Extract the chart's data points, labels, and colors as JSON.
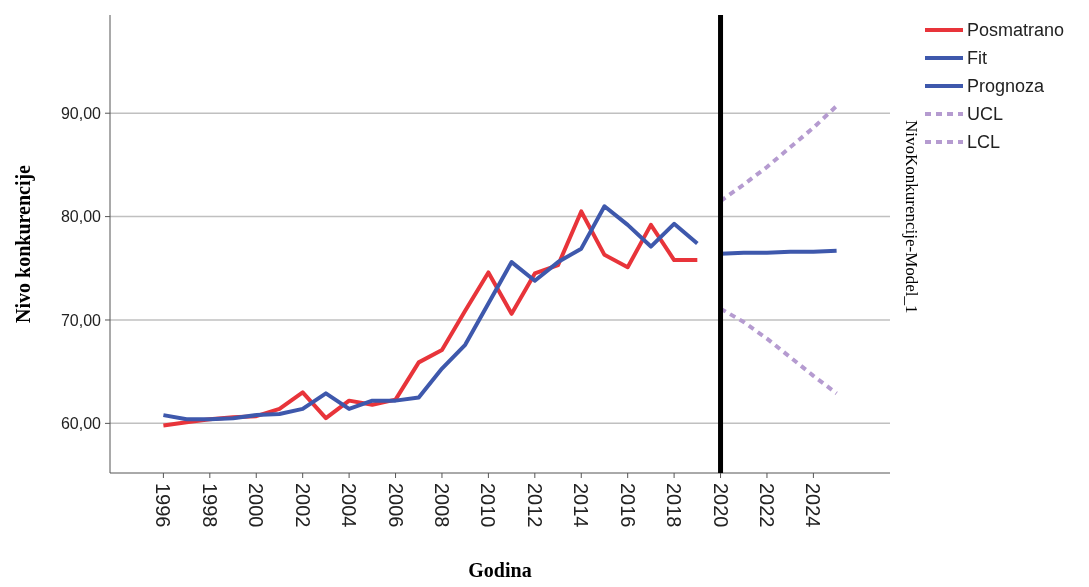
{
  "chart_data": {
    "type": "line",
    "xlabel": "Godina",
    "ylabel": "Nivo konkurencije",
    "y2label": "NivoKonkurencije-Model_1",
    "xlim": [
      1993.7,
      2027.3
    ],
    "ylim": [
      55.2,
      99.5
    ],
    "xticks": [
      1996,
      1998,
      2000,
      2002,
      2004,
      2006,
      2008,
      2010,
      2012,
      2014,
      2016,
      2018,
      2020,
      2022,
      2024
    ],
    "yticks": [
      {
        "value": 60,
        "label": "60,00"
      },
      {
        "value": 70,
        "label": "70,00"
      },
      {
        "value": 80,
        "label": "80,00"
      },
      {
        "value": 90,
        "label": "90,00"
      }
    ],
    "grid": "y",
    "legend": "top right",
    "ref_lines": [
      {
        "axis": "x",
        "value": 2020,
        "color": "#000000",
        "line_style": "solid"
      }
    ],
    "series": [
      {
        "name": "Posmatrano",
        "color": "#e8343a",
        "line_style": "solid",
        "x": [
          1996,
          1997,
          1998,
          1999,
          2000,
          2001,
          2002,
          2003,
          2004,
          2005,
          2006,
          2007,
          2008,
          2009,
          2010,
          2011,
          2012,
          2013,
          2014,
          2015,
          2016,
          2017,
          2018,
          2019
        ],
        "values": [
          59.8,
          60.1,
          60.4,
          60.6,
          60.7,
          61.4,
          63.0,
          60.5,
          62.2,
          61.8,
          62.3,
          65.9,
          67.1,
          70.9,
          74.6,
          70.6,
          74.5,
          75.3,
          80.5,
          76.3,
          75.1,
          79.2,
          75.8,
          75.8
        ]
      },
      {
        "name": "Fit",
        "color": "#3e58ac",
        "line_style": "solid",
        "x": [
          1996,
          1997,
          1998,
          1999,
          2000,
          2001,
          2002,
          2003,
          2004,
          2005,
          2006,
          2007,
          2008,
          2009,
          2010,
          2011,
          2012,
          2013,
          2014,
          2015,
          2016,
          2017,
          2018,
          2019
        ],
        "values": [
          60.8,
          60.4,
          60.4,
          60.5,
          60.8,
          60.9,
          61.4,
          62.9,
          61.4,
          62.2,
          62.2,
          62.5,
          65.3,
          67.6,
          71.6,
          75.6,
          73.8,
          75.6,
          76.9,
          81.0,
          79.2,
          77.1,
          79.3,
          77.4
        ]
      },
      {
        "name": "Prognoza",
        "color": "#3e58ac",
        "line_style": "solid",
        "x": [
          2020,
          2021,
          2022,
          2023,
          2024,
          2025
        ],
        "values": [
          76.4,
          76.5,
          76.5,
          76.6,
          76.6,
          76.7
        ]
      },
      {
        "name": "UCL",
        "color": "#b59bd0",
        "line_style": "dashed",
        "x": [
          2020,
          2021,
          2022,
          2023,
          2024,
          2025
        ],
        "values": [
          81.5,
          83.1,
          84.8,
          86.7,
          88.6,
          90.7
        ]
      },
      {
        "name": "LCL",
        "color": "#b59bd0",
        "line_style": "dashed",
        "x": [
          2020,
          2021,
          2022,
          2023,
          2024,
          2025
        ],
        "values": [
          71.1,
          69.8,
          68.2,
          66.4,
          64.6,
          62.9
        ]
      }
    ]
  }
}
